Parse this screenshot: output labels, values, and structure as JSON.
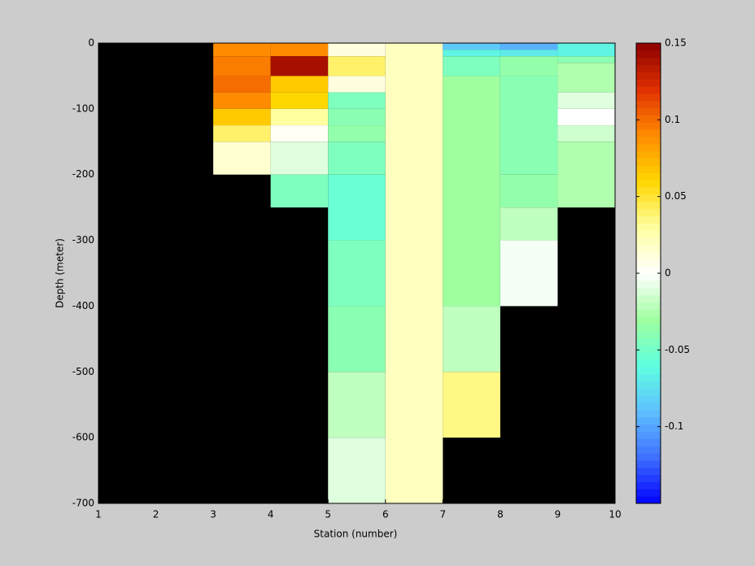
{
  "chart_data": {
    "type": "heatmap",
    "xlabel": "Station (number)",
    "ylabel": "Depth (meter)",
    "xlim": [
      1,
      10
    ],
    "xticks": [
      1,
      2,
      3,
      4,
      5,
      6,
      7,
      8,
      9,
      10
    ],
    "ylim": [
      -700,
      0
    ],
    "yticks": [
      0,
      -100,
      -200,
      -300,
      -400,
      -500,
      -600,
      -700
    ],
    "background": "#000000",
    "clim": [
      -0.15,
      0.15
    ],
    "cticks": [
      0.15,
      0.1,
      0.05,
      0,
      -0.05,
      -0.1
    ],
    "colormap": [
      "#0000ff",
      "#3f6fff",
      "#5fbfff",
      "#5fffdf",
      "#9fff9f",
      "#ffffff",
      "#ffff9f",
      "#ffd700",
      "#ff8c00",
      "#e03000",
      "#8b0000"
    ],
    "cells": [
      {
        "x": [
          3,
          4
        ],
        "y": [
          0,
          -20
        ],
        "value": 0.09
      },
      {
        "x": [
          3,
          4
        ],
        "y": [
          -20,
          -50
        ],
        "value": 0.095
      },
      {
        "x": [
          3,
          4
        ],
        "y": [
          -50,
          -75
        ],
        "value": 0.1
      },
      {
        "x": [
          3,
          4
        ],
        "y": [
          -75,
          -100
        ],
        "value": 0.09
      },
      {
        "x": [
          3,
          4
        ],
        "y": [
          -100,
          -125
        ],
        "value": 0.065
      },
      {
        "x": [
          3,
          4
        ],
        "y": [
          -125,
          -150
        ],
        "value": 0.04
      },
      {
        "x": [
          3,
          4
        ],
        "y": [
          -150,
          -200
        ],
        "value": 0.015
      },
      {
        "x": [
          4,
          5
        ],
        "y": [
          0,
          -20
        ],
        "value": 0.09
      },
      {
        "x": [
          4,
          5
        ],
        "y": [
          -20,
          -50
        ],
        "value": 0.14
      },
      {
        "x": [
          4,
          5
        ],
        "y": [
          -50,
          -75
        ],
        "value": 0.065
      },
      {
        "x": [
          4,
          5
        ],
        "y": [
          -75,
          -100
        ],
        "value": 0.06
      },
      {
        "x": [
          4,
          5
        ],
        "y": [
          -100,
          -125
        ],
        "value": 0.03
      },
      {
        "x": [
          4,
          5
        ],
        "y": [
          -125,
          -150
        ],
        "value": 0.003
      },
      {
        "x": [
          4,
          5
        ],
        "y": [
          -150,
          -200
        ],
        "value": -0.01
      },
      {
        "x": [
          4,
          5
        ],
        "y": [
          -200,
          -250
        ],
        "value": -0.045
      },
      {
        "x": [
          5,
          6
        ],
        "y": [
          0,
          -20
        ],
        "value": 0.01
      },
      {
        "x": [
          5,
          6
        ],
        "y": [
          -20,
          -50
        ],
        "value": 0.04
      },
      {
        "x": [
          5,
          6
        ],
        "y": [
          -50,
          -75
        ],
        "value": 0.01
      },
      {
        "x": [
          5,
          6
        ],
        "y": [
          -75,
          -100
        ],
        "value": -0.045
      },
      {
        "x": [
          5,
          6
        ],
        "y": [
          -100,
          -125
        ],
        "value": -0.04
      },
      {
        "x": [
          5,
          6
        ],
        "y": [
          -125,
          -150
        ],
        "value": -0.035
      },
      {
        "x": [
          5,
          6
        ],
        "y": [
          -150,
          -200
        ],
        "value": -0.045
      },
      {
        "x": [
          5,
          6
        ],
        "y": [
          -200,
          -300
        ],
        "value": -0.055
      },
      {
        "x": [
          5,
          6
        ],
        "y": [
          -300,
          -400
        ],
        "value": -0.045
      },
      {
        "x": [
          5,
          6
        ],
        "y": [
          -400,
          -500
        ],
        "value": -0.04
      },
      {
        "x": [
          5,
          6
        ],
        "y": [
          -500,
          -600
        ],
        "value": -0.02
      },
      {
        "x": [
          5,
          6
        ],
        "y": [
          -600,
          -700
        ],
        "value": -0.01
      },
      {
        "x": [
          6,
          7
        ],
        "y": [
          0,
          -700
        ],
        "value": 0.02
      },
      {
        "x": [
          7,
          8
        ],
        "y": [
          0,
          -10
        ],
        "value": -0.085
      },
      {
        "x": [
          7,
          8
        ],
        "y": [
          -10,
          -20
        ],
        "value": -0.065
      },
      {
        "x": [
          7,
          8
        ],
        "y": [
          -20,
          -50
        ],
        "value": -0.045
      },
      {
        "x": [
          7,
          8
        ],
        "y": [
          -50,
          -400
        ],
        "value": -0.03
      },
      {
        "x": [
          7,
          8
        ],
        "y": [
          -400,
          -500
        ],
        "value": -0.02
      },
      {
        "x": [
          7,
          8
        ],
        "y": [
          -500,
          -600
        ],
        "value": 0.035
      },
      {
        "x": [
          8,
          9
        ],
        "y": [
          0,
          -10
        ],
        "value": -0.095
      },
      {
        "x": [
          8,
          9
        ],
        "y": [
          -10,
          -20
        ],
        "value": -0.07
      },
      {
        "x": [
          8,
          9
        ],
        "y": [
          -20,
          -50
        ],
        "value": -0.035
      },
      {
        "x": [
          8,
          9
        ],
        "y": [
          -50,
          -200
        ],
        "value": -0.04
      },
      {
        "x": [
          8,
          9
        ],
        "y": [
          -200,
          -250
        ],
        "value": -0.035
      },
      {
        "x": [
          8,
          9
        ],
        "y": [
          -250,
          -300
        ],
        "value": -0.02
      },
      {
        "x": [
          8,
          9
        ],
        "y": [
          -300,
          -400
        ],
        "value": -0.003
      },
      {
        "x": [
          9,
          10
        ],
        "y": [
          0,
          -20
        ],
        "value": -0.065
      },
      {
        "x": [
          9,
          10
        ],
        "y": [
          -20,
          -30
        ],
        "value": -0.04
      },
      {
        "x": [
          9,
          10
        ],
        "y": [
          -30,
          -75
        ],
        "value": -0.025
      },
      {
        "x": [
          9,
          10
        ],
        "y": [
          -75,
          -100
        ],
        "value": -0.01
      },
      {
        "x": [
          9,
          10
        ],
        "y": [
          -100,
          -125
        ],
        "value": 0.0
      },
      {
        "x": [
          9,
          10
        ],
        "y": [
          -125,
          -150
        ],
        "value": -0.015
      },
      {
        "x": [
          9,
          10
        ],
        "y": [
          -150,
          -250
        ],
        "value": -0.025
      }
    ]
  }
}
